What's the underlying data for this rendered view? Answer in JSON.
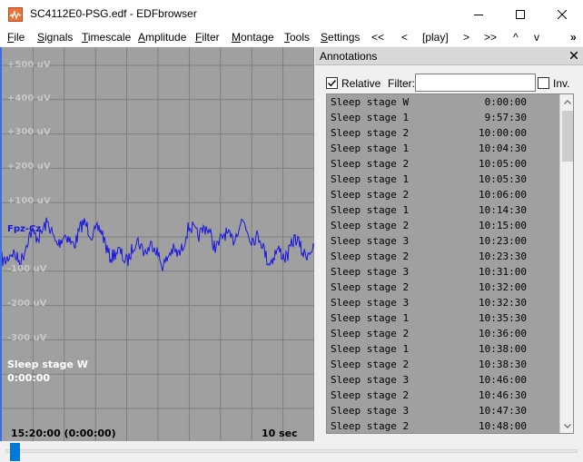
{
  "window": {
    "title": "SC4112E0-PSG.edf - EDFbrowser",
    "icon": "edfbrowser-app-icon",
    "controls": [
      "minimize-icon",
      "maximize-icon",
      "close-icon"
    ]
  },
  "menu": [
    {
      "label": "File",
      "u": "F",
      "rest": "ile"
    },
    {
      "label": "Signals",
      "u": "S",
      "rest": "ignals"
    },
    {
      "label": "Timescale",
      "u": "T",
      "rest": "imescale"
    },
    {
      "label": "Amplitude",
      "u": "A",
      "rest": "mplitude"
    },
    {
      "label": "Filter",
      "u": "F",
      "rest": "ilter"
    },
    {
      "label": "Montage",
      "u": "M",
      "rest": "ontage"
    },
    {
      "label": "Tools",
      "u": "T",
      "rest": "ools"
    },
    {
      "label": "Settings",
      "u": "S",
      "rest": "ettings"
    }
  ],
  "nav_buttons": [
    "<<",
    "<",
    "[play]",
    ">",
    ">>",
    "^",
    "v"
  ],
  "overflow_label": "»",
  "signal_view": {
    "amplitude_labels": [
      "+500 uV",
      "+400 uV",
      "+300 uV",
      "+200 uV",
      "+100 uV",
      "-100 uV",
      "-200 uV",
      "-300 uV"
    ],
    "signal_name": "Fpz-Cz",
    "annotation_marker": {
      "label": "Sleep stage W",
      "time": "0:00:00"
    },
    "time_start": "15:20:00 (0:00:00)",
    "time_span": "10 sec",
    "colors": {
      "background": "#a0a0a0",
      "trace": "#1616e0",
      "grid": "#7e7e7e"
    }
  },
  "annotations_dock": {
    "title": "Annotations",
    "relative_label": "Relative",
    "relative_checked": true,
    "filter_label": "Filter:",
    "filter_value": "",
    "inverse_label": "Inv.",
    "inverse_checked": false,
    "rows": [
      {
        "label": "Sleep stage W",
        "time": "0:00:00"
      },
      {
        "label": "Sleep stage 1",
        "time": "9:57:30"
      },
      {
        "label": "Sleep stage 2",
        "time": "10:00:00"
      },
      {
        "label": "Sleep stage 1",
        "time": "10:04:30"
      },
      {
        "label": "Sleep stage 2",
        "time": "10:05:00"
      },
      {
        "label": "Sleep stage 1",
        "time": "10:05:30"
      },
      {
        "label": "Sleep stage 2",
        "time": "10:06:00"
      },
      {
        "label": "Sleep stage 1",
        "time": "10:14:30"
      },
      {
        "label": "Sleep stage 2",
        "time": "10:15:00"
      },
      {
        "label": "Sleep stage 3",
        "time": "10:23:00"
      },
      {
        "label": "Sleep stage 2",
        "time": "10:23:30"
      },
      {
        "label": "Sleep stage 3",
        "time": "10:31:00"
      },
      {
        "label": "Sleep stage 2",
        "time": "10:32:00"
      },
      {
        "label": "Sleep stage 3",
        "time": "10:32:30"
      },
      {
        "label": "Sleep stage 1",
        "time": "10:35:30"
      },
      {
        "label": "Sleep stage 2",
        "time": "10:36:00"
      },
      {
        "label": "Sleep stage 1",
        "time": "10:38:00"
      },
      {
        "label": "Sleep stage 2",
        "time": "10:38:30"
      },
      {
        "label": "Sleep stage 3",
        "time": "10:46:00"
      },
      {
        "label": "Sleep stage 2",
        "time": "10:46:30"
      },
      {
        "label": "Sleep stage 3",
        "time": "10:47:30"
      },
      {
        "label": "Sleep stage 2",
        "time": "10:48:00"
      }
    ]
  },
  "slider": {
    "position": 0.0
  }
}
